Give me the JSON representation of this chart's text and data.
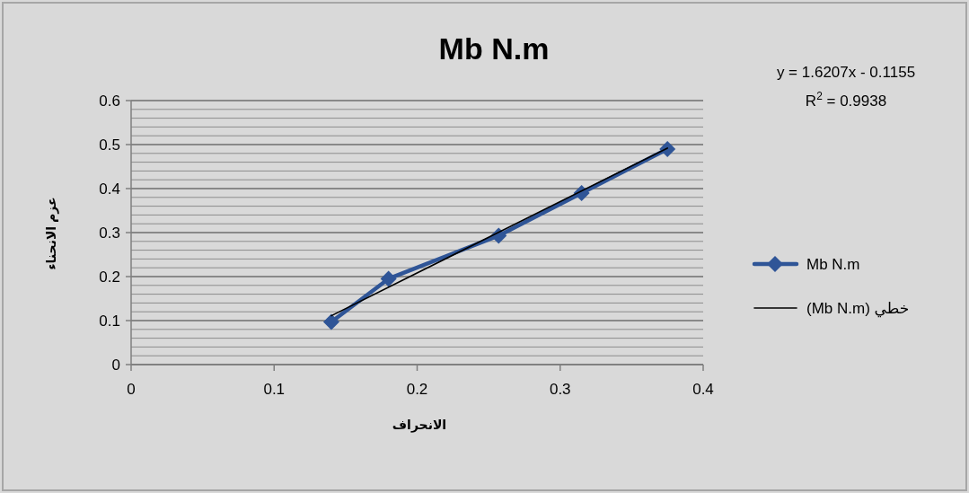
{
  "chart_data": {
    "type": "line",
    "title": "Mb N.m",
    "xlabel": "الانحراف",
    "ylabel": "عزم الانحناء",
    "annotations": [
      "y = 1.6207x - 0.1155",
      "R$^{2}$ = 0.9938"
    ],
    "series": [
      {
        "name": "Mb N.m",
        "color": "#2f5597",
        "marker": "diamond",
        "x": [
          0.14,
          0.18,
          0.257,
          0.315,
          0.375
        ],
        "values": [
          0.097,
          0.195,
          0.293,
          0.39,
          0.49
        ]
      },
      {
        "name": "خطي (Mb N.m)",
        "color": "#000000",
        "marker": "none",
        "x": [
          0.14,
          0.375
        ],
        "values": [
          0.111,
          0.492
        ]
      }
    ],
    "xlim": [
      0,
      0.4
    ],
    "xticks": [
      0,
      0.1,
      0.2,
      0.3,
      0.4
    ],
    "ylim": [
      0,
      0.6
    ],
    "yticks": [
      0,
      0.1,
      0.2,
      0.3,
      0.4,
      0.5,
      0.6
    ],
    "grid": "y",
    "legend": "right"
  }
}
